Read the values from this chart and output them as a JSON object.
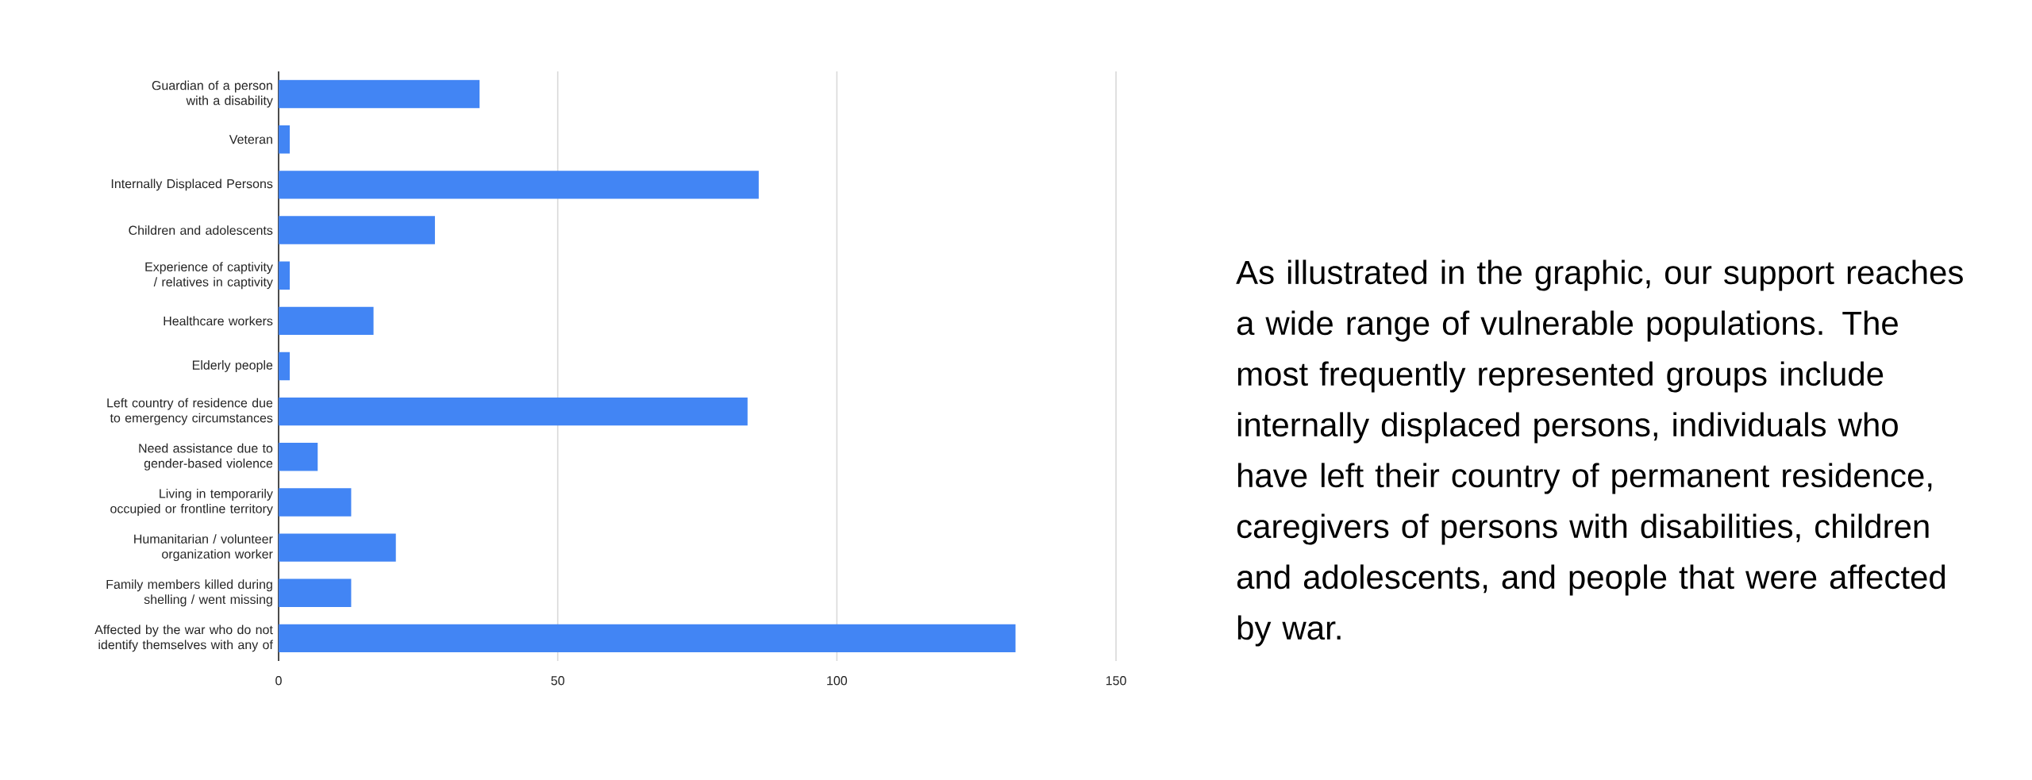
{
  "chart_data": {
    "type": "bar",
    "orientation": "horizontal",
    "categories": [
      "Guardian of a person with a disability",
      "Veteran",
      "Internally Displaced Persons",
      "Children and adolescents",
      "Experience of captivity / relatives in captivity",
      "Healthcare workers",
      "Elderly people",
      "Left country of residence due to emergency circumstances",
      "Need assistance due to gender-based violence",
      "Living in temporarily occupied or frontline territory",
      "Humanitarian / volunteer organization worker",
      "Family members killed during shelling / went missing",
      "Affected by the war who do not identify themselves with any of"
    ],
    "values": [
      36,
      2,
      86,
      28,
      2,
      17,
      2,
      84,
      7,
      13,
      21,
      13,
      132
    ],
    "color": "#4285f4",
    "xlim": [
      0,
      150
    ],
    "xticks": [
      0,
      50,
      100,
      150
    ],
    "grid": "x",
    "annotations": [
      "As illustrated in the graphic, our support reaches a wide range of vulnerable populations. The most frequently represented groups include internally displaced persons, individuals who have left their country of permanent residence, caregivers of persons with disabilities, children and adolescents, and people that were affected by war."
    ]
  }
}
